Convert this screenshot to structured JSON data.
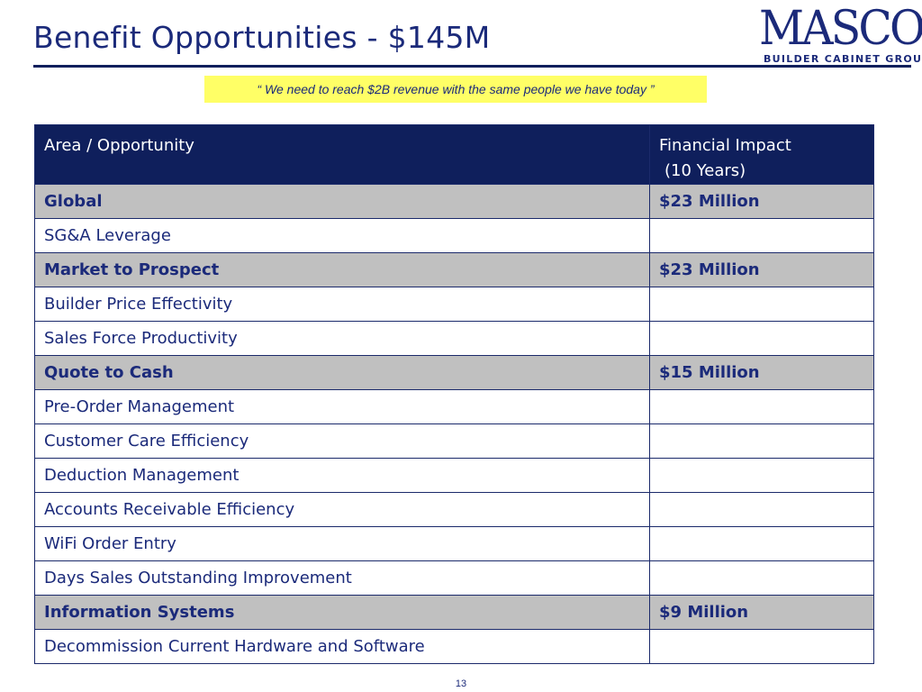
{
  "slide": {
    "title": "Benefit Opportunities - $145M",
    "quote": "“ We need to reach $2B revenue with the same people we have today ”",
    "page_number": "13"
  },
  "logo": {
    "wordmark": "MASCO",
    "subtitle": "BUILDER CABINET GROUP",
    "color": "#1b2a7a"
  },
  "table": {
    "headers": {
      "area": "Area / Opportunity",
      "impact_line1": "Financial Impact",
      "impact_line2": "(10 Years)"
    },
    "rows": [
      {
        "area": "Global",
        "impact": "$23 Million",
        "group": true
      },
      {
        "area": "SG&A Leverage",
        "impact": "",
        "group": false
      },
      {
        "area": "Market to Prospect",
        "impact": "$23 Million",
        "group": true
      },
      {
        "area": "Builder Price Effectivity",
        "impact": "",
        "group": false
      },
      {
        "area": "Sales Force Productivity",
        "impact": "",
        "group": false
      },
      {
        "area": "Quote to Cash",
        "impact": "$15 Million",
        "group": true
      },
      {
        "area": "Pre-Order Management",
        "impact": "",
        "group": false
      },
      {
        "area": "Customer Care Efficiency",
        "impact": "",
        "group": false
      },
      {
        "area": "Deduction Management",
        "impact": "",
        "group": false
      },
      {
        "area": "Accounts Receivable Efficiency",
        "impact": "",
        "group": false
      },
      {
        "area": "WiFi Order Entry",
        "impact": "",
        "group": false
      },
      {
        "area": "Days Sales Outstanding Improvement",
        "impact": "",
        "group": false
      },
      {
        "area": "Information Systems",
        "impact": "$9 Million",
        "group": true
      },
      {
        "area": "Decommission Current Hardware and Software",
        "impact": "",
        "group": false
      }
    ]
  },
  "colors": {
    "navy": "#0f1f5c",
    "text_blue": "#1b2a7a",
    "group_gray": "#c0c0c0",
    "quote_yellow": "#ffff66"
  }
}
